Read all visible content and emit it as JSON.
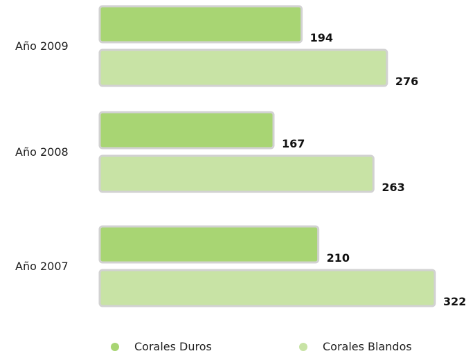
{
  "chart_data": {
    "type": "bar",
    "orientation": "horizontal",
    "categories": [
      "Año 2009",
      "Año 2008",
      "Año 2007"
    ],
    "series": [
      {
        "name": "Corales Duros",
        "values": [
          194,
          167,
          210
        ],
        "color": "#a8d573",
        "border": "#d2d2d2"
      },
      {
        "name": "Corales Blandos",
        "values": [
          276,
          263,
          322
        ],
        "color": "#c8e3a5",
        "border": "#d2d2d2"
      }
    ],
    "xlim": [
      0,
      322
    ],
    "grid": false,
    "legend_position": "bottom"
  }
}
